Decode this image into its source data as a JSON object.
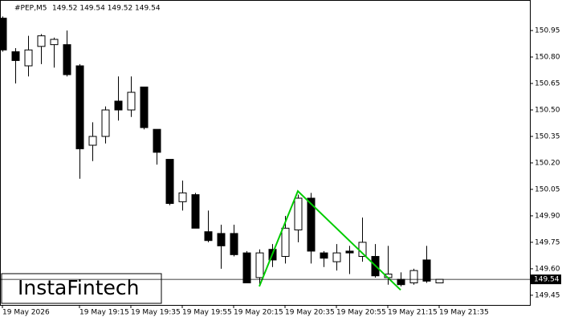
{
  "chart_data": {
    "type": "candlestick",
    "title": "#PEP,M5",
    "ohlc_label": "149.52 149.54 149.52 149.54",
    "watermark": "InstaFintech",
    "categories": [
      "19 May 2026",
      null,
      null,
      null,
      null,
      null,
      "19 May 19:15",
      null,
      null,
      null,
      "19 May 19:35",
      null,
      null,
      null,
      "19 May 19:55",
      null,
      null,
      null,
      "19 May 20:15",
      null,
      null,
      null,
      "19 May 20:35",
      null,
      null,
      null,
      "19 May 20:55",
      null,
      null,
      null,
      "19 May 21:15",
      null,
      null,
      null,
      "19 May 21:35"
    ],
    "open": [
      151.02,
      150.83,
      150.75,
      150.86,
      150.87,
      150.87,
      150.75,
      150.3,
      150.35,
      150.55,
      150.5,
      150.63,
      150.39,
      150.22,
      149.98,
      150.02,
      149.81,
      149.8,
      149.8,
      149.69,
      149.55,
      149.71,
      149.67,
      149.82,
      150.0,
      149.69,
      149.64,
      149.7,
      149.67,
      149.67,
      149.55,
      149.54,
      149.52,
      149.65,
      149.52
    ],
    "high": [
      151.03,
      150.85,
      150.92,
      150.93,
      150.91,
      150.95,
      150.76,
      150.43,
      150.52,
      150.69,
      150.69,
      150.63,
      150.39,
      150.22,
      150.1,
      150.03,
      149.93,
      149.85,
      149.85,
      149.7,
      149.71,
      149.74,
      149.9,
      150.02,
      150.03,
      149.7,
      149.74,
      149.73,
      149.89,
      149.74,
      149.73,
      149.58,
      149.6,
      149.73,
      149.54
    ],
    "low": [
      150.83,
      150.65,
      150.69,
      150.76,
      150.74,
      150.69,
      150.11,
      150.21,
      150.31,
      150.44,
      150.46,
      150.39,
      150.19,
      149.96,
      149.93,
      149.83,
      149.75,
      149.6,
      149.67,
      149.52,
      149.5,
      149.61,
      149.63,
      149.75,
      149.63,
      149.61,
      149.59,
      149.57,
      149.64,
      149.55,
      149.51,
      149.5,
      149.51,
      149.52,
      149.52
    ],
    "close": [
      150.84,
      150.78,
      150.84,
      150.92,
      150.9,
      150.7,
      150.28,
      150.35,
      150.5,
      150.5,
      150.6,
      150.4,
      150.26,
      149.97,
      150.03,
      149.83,
      149.76,
      149.73,
      149.68,
      149.52,
      149.69,
      149.65,
      149.83,
      150.0,
      149.7,
      149.66,
      149.69,
      149.69,
      149.75,
      149.56,
      149.57,
      149.51,
      149.59,
      149.53,
      149.54
    ],
    "up_color": "#ffffff",
    "down_color": "#000000",
    "ylim": [
      149.395,
      151.123
    ],
    "yticks": [
      150.95,
      {
        "value": 150.8,
        "label": "150.80"
      },
      150.65,
      {
        "value": 150.5,
        "label": "150.50"
      },
      150.35,
      {
        "value": 150.2,
        "label": "150.20"
      },
      150.05,
      {
        "value": 149.9,
        "label": "149.90"
      },
      149.75,
      {
        "value": 149.6,
        "label": "149.60"
      },
      149.45
    ],
    "current_price": 149.54,
    "pattern": {
      "color": "#00cc00",
      "x": [
        20,
        23,
        31
      ],
      "y": [
        149.5,
        150.04,
        149.48
      ]
    }
  }
}
